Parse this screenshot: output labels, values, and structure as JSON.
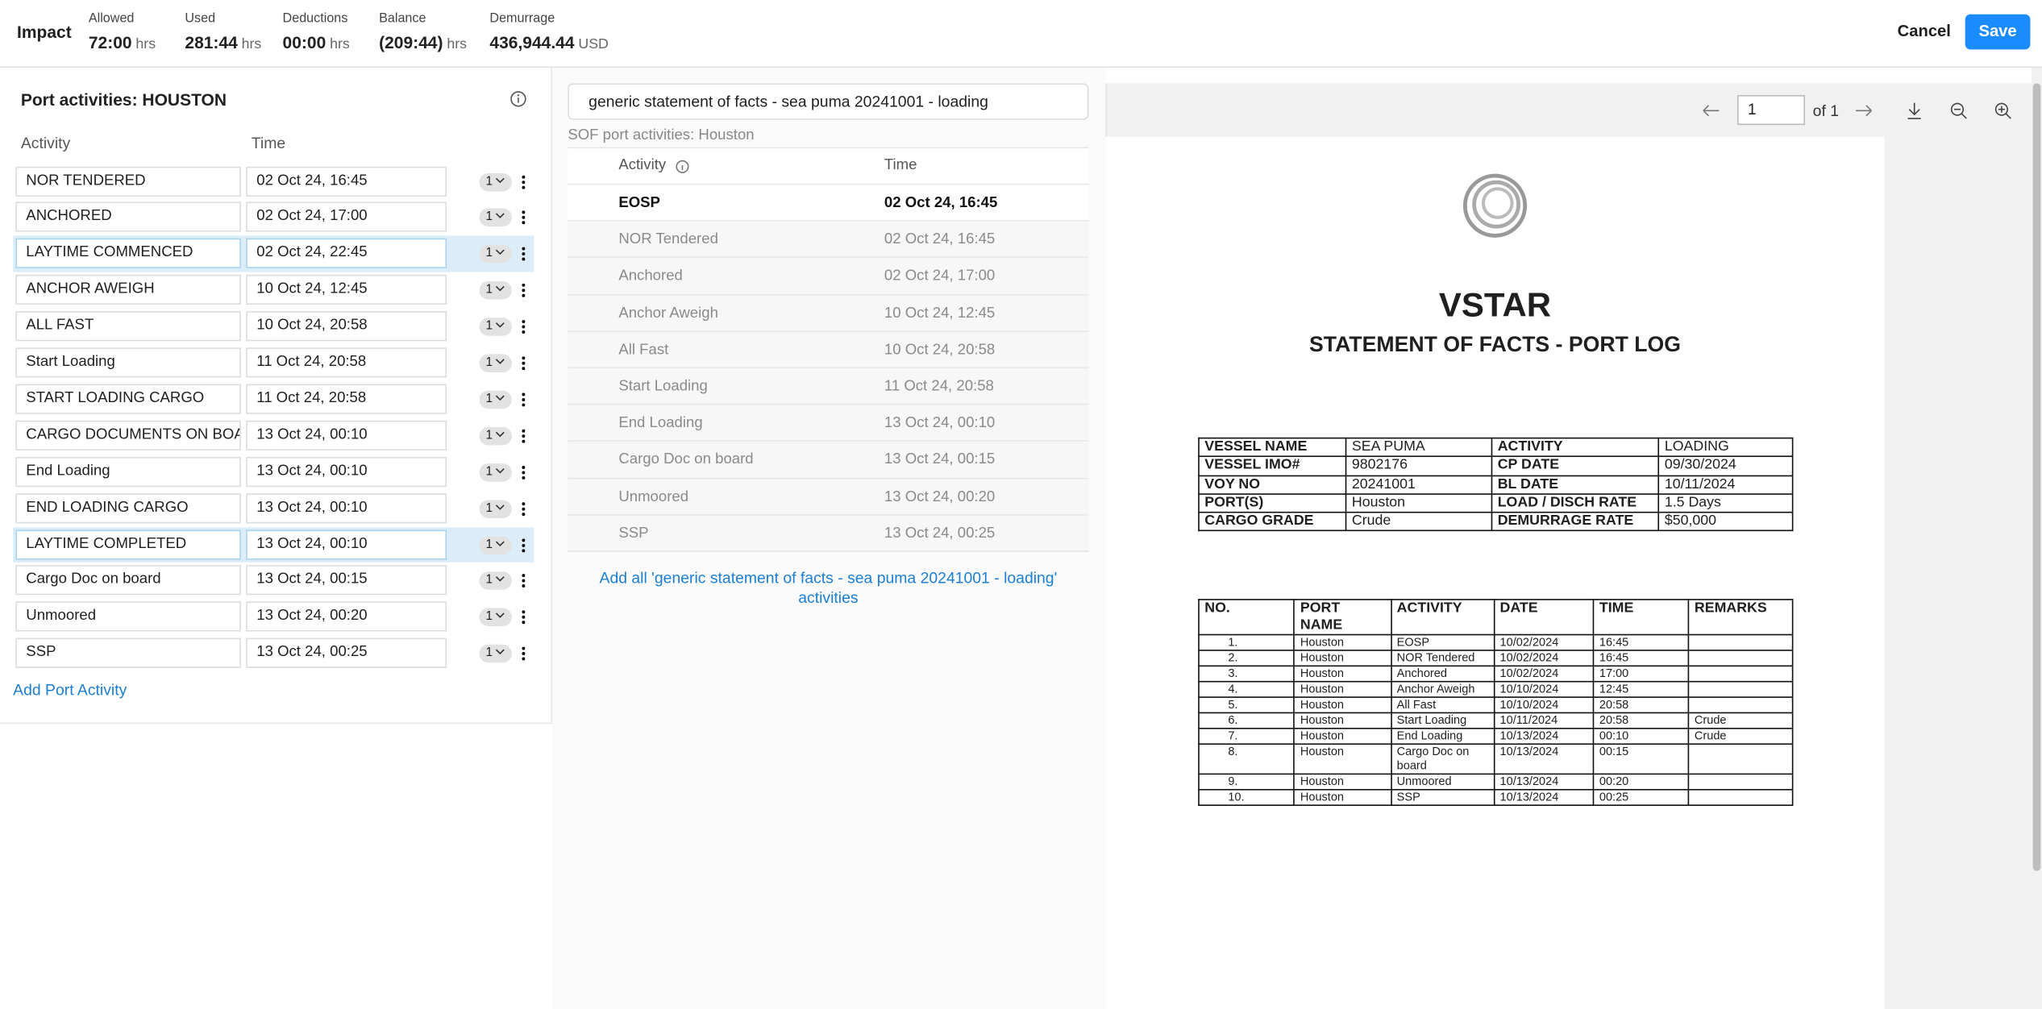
{
  "header": {
    "title": "Impact",
    "stats": [
      {
        "label": "Allowed",
        "value": "72:00",
        "unit": "hrs"
      },
      {
        "label": "Used",
        "value": "281:44",
        "unit": "hrs"
      },
      {
        "label": "Deductions",
        "value": "00:00",
        "unit": "hrs"
      },
      {
        "label": "Balance",
        "value": "(209:44)",
        "unit": "hrs"
      },
      {
        "label": "Demurrage",
        "value": "436,944.44",
        "unit": "USD"
      }
    ],
    "cancel": "Cancel",
    "save": "Save"
  },
  "port_activities": {
    "title": "Port activities: HOUSTON",
    "columns": [
      "Activity",
      "Time"
    ],
    "rows": [
      {
        "activity": "NOR TENDERED",
        "time": "02 Oct 24, 16:45",
        "count": "1",
        "highlighted": false
      },
      {
        "activity": "ANCHORED",
        "time": "02 Oct 24, 17:00",
        "count": "1",
        "highlighted": false
      },
      {
        "activity": "LAYTIME COMMENCED",
        "time": "02 Oct 24, 22:45",
        "count": "1",
        "highlighted": true
      },
      {
        "activity": "ANCHOR AWEIGH",
        "time": "10 Oct 24, 12:45",
        "count": "1",
        "highlighted": false
      },
      {
        "activity": "ALL FAST",
        "time": "10 Oct 24, 20:58",
        "count": "1",
        "highlighted": false
      },
      {
        "activity": "Start Loading",
        "time": "11 Oct 24, 20:58",
        "count": "1",
        "highlighted": false
      },
      {
        "activity": "START LOADING CARGO",
        "time": "11 Oct 24, 20:58",
        "count": "1",
        "highlighted": false
      },
      {
        "activity": "CARGO DOCUMENTS ON BOA",
        "time": "13 Oct 24, 00:10",
        "count": "1",
        "highlighted": false
      },
      {
        "activity": "End Loading",
        "time": "13 Oct 24, 00:10",
        "count": "1",
        "highlighted": false
      },
      {
        "activity": "END LOADING CARGO",
        "time": "13 Oct 24, 00:10",
        "count": "1",
        "highlighted": false
      },
      {
        "activity": "LAYTIME COMPLETED",
        "time": "13 Oct 24, 00:10",
        "count": "1",
        "highlighted": true
      },
      {
        "activity": "Cargo Doc on board",
        "time": "13 Oct 24, 00:15",
        "count": "1",
        "highlighted": false
      },
      {
        "activity": "Unmoored",
        "time": "13 Oct 24, 00:20",
        "count": "1",
        "highlighted": false
      },
      {
        "activity": "SSP",
        "time": "13 Oct 24, 00:25",
        "count": "1",
        "highlighted": false
      }
    ],
    "add": "Add Port Activity"
  },
  "sof": {
    "selector": "generic statement of facts - sea puma 20241001 - loading",
    "subtitle": "SOF port activities: Houston",
    "columns": [
      "Activity",
      "Time"
    ],
    "rows": [
      {
        "activity": "EOSP",
        "time": "02 Oct 24, 16:45"
      },
      {
        "activity": "NOR Tendered",
        "time": "02 Oct 24, 16:45"
      },
      {
        "activity": "Anchored",
        "time": "02 Oct 24, 17:00"
      },
      {
        "activity": "Anchor Aweigh",
        "time": "10 Oct 24, 12:45"
      },
      {
        "activity": "All Fast",
        "time": "10 Oct 24, 20:58"
      },
      {
        "activity": "Start Loading",
        "time": "11 Oct 24, 20:58"
      },
      {
        "activity": "End Loading",
        "time": "13 Oct 24, 00:10"
      },
      {
        "activity": "Cargo Doc on board",
        "time": "13 Oct 24, 00:15"
      },
      {
        "activity": "Unmoored",
        "time": "13 Oct 24, 00:20"
      },
      {
        "activity": "SSP",
        "time": "13 Oct 24, 00:25"
      }
    ],
    "add_all": "Add all 'generic statement of facts - sea puma 20241001 - loading' activities"
  },
  "viewer": {
    "page": "1",
    "of": "of 1"
  },
  "document": {
    "title": "VSTAR",
    "subtitle": "STATEMENT OF FACTS - PORT LOG",
    "info": [
      [
        "VESSEL NAME",
        "SEA PUMA",
        "ACTIVITY",
        "LOADING"
      ],
      [
        "VESSEL IMO#",
        "9802176",
        "CP DATE",
        "09/30/2024"
      ],
      [
        "VOY NO",
        "20241001",
        "BL DATE",
        "10/11/2024"
      ],
      [
        "PORT(S)",
        "Houston",
        "LOAD / DISCH RATE",
        "1.5 Days"
      ],
      [
        "CARGO GRADE",
        "Crude",
        "DEMURRAGE RATE",
        "$50,000"
      ]
    ],
    "log_header": [
      "NO.",
      "PORT NAME",
      "ACTIVITY",
      "DATE",
      "TIME",
      "REMARKS"
    ],
    "log": [
      [
        "1.",
        "Houston",
        "EOSP",
        "10/02/2024",
        "16:45",
        ""
      ],
      [
        "2.",
        "Houston",
        "NOR Tendered",
        "10/02/2024",
        "16:45",
        ""
      ],
      [
        "3.",
        "Houston",
        "Anchored",
        "10/02/2024",
        "17:00",
        ""
      ],
      [
        "4.",
        "Houston",
        "Anchor Aweigh",
        "10/10/2024",
        "12:45",
        ""
      ],
      [
        "5.",
        "Houston",
        "All Fast",
        "10/10/2024",
        "20:58",
        ""
      ],
      [
        "6.",
        "Houston",
        "Start Loading",
        "10/11/2024",
        "20:58",
        "Crude"
      ],
      [
        "7.",
        "Houston",
        "End Loading",
        "10/13/2024",
        "00:10",
        "Crude"
      ],
      [
        "8.",
        "Houston",
        "Cargo Doc on board",
        "10/13/2024",
        "00:15",
        ""
      ],
      [
        "9.",
        "Houston",
        "Unmoored",
        "10/13/2024",
        "00:20",
        ""
      ],
      [
        "10.",
        "Houston",
        "SSP",
        "10/13/2024",
        "00:25",
        ""
      ]
    ]
  }
}
